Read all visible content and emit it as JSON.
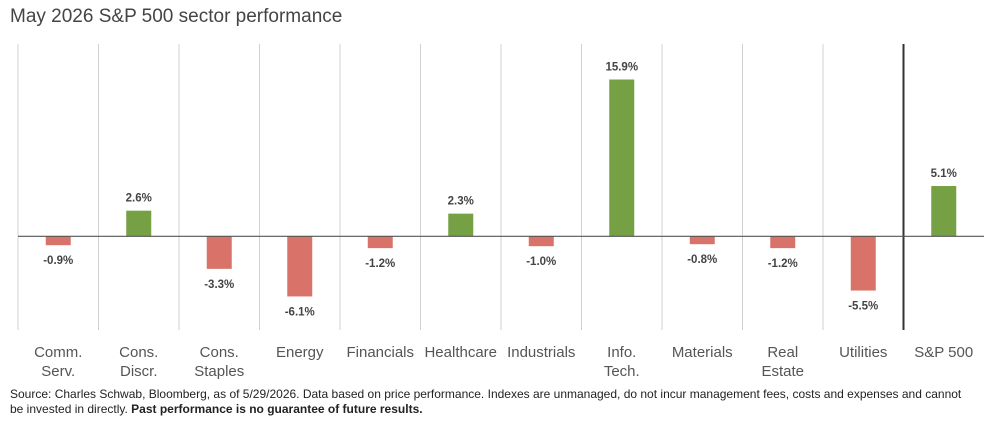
{
  "title": "May 2026 S&P 500 sector performance",
  "footnote": {
    "text": "Source: Charles Schwab, Bloomberg, as of 5/29/2026.  Data based on price performance. Indexes are unmanaged, do not incur management fees, costs and expenses and cannot be invested in directly. ",
    "bold": "Past performance is no guarantee of future results."
  },
  "colors": {
    "positive": "#76a044",
    "negative": "#d9736a",
    "grid": "#d0d0d0",
    "divider": "#333333",
    "axis": "#555555"
  },
  "chart_data": {
    "type": "bar",
    "title": "May 2026 S&P 500 sector performance",
    "categories": [
      [
        "Comm.",
        "Serv."
      ],
      [
        "Cons.",
        "Discr."
      ],
      [
        "Cons.",
        "Staples"
      ],
      [
        "Energy"
      ],
      [
        "Financials"
      ],
      [
        "Healthcare"
      ],
      [
        "Industrials"
      ],
      [
        "Info.",
        "Tech."
      ],
      [
        "Materials"
      ],
      [
        "Real",
        "Estate"
      ],
      [
        "Utilities"
      ],
      [
        "S&P 500"
      ]
    ],
    "values": [
      -0.9,
      2.6,
      -3.3,
      -6.1,
      -1.2,
      2.3,
      -1.0,
      15.9,
      -0.8,
      -1.2,
      -5.5,
      5.1
    ],
    "value_labels": [
      "-0.9%",
      "2.6%",
      "-3.3%",
      "-6.1%",
      "-1.2%",
      "2.3%",
      "-1.0%",
      "15.9%",
      "-0.8%",
      "-1.2%",
      "-5.5%",
      "5.1%"
    ],
    "ylim": [
      -9.5,
      19.5
    ],
    "grid": "vertical",
    "legend": "none"
  }
}
